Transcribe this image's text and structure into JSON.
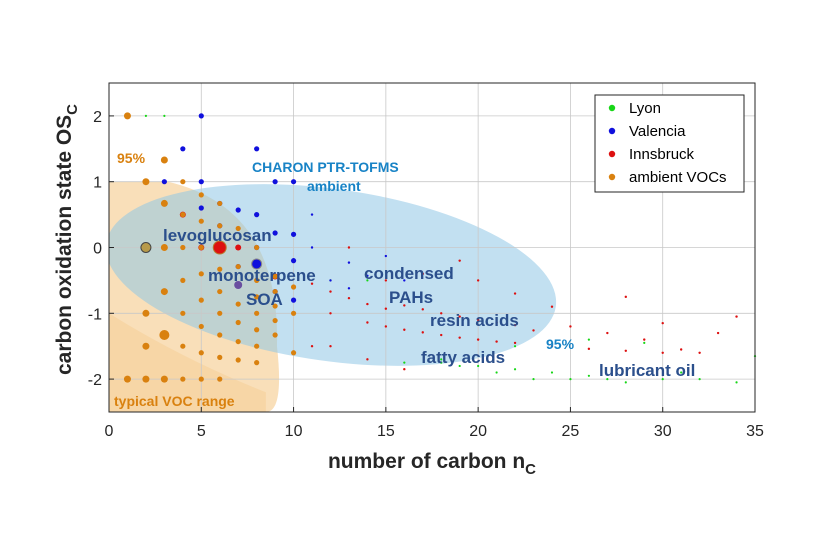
{
  "chart_data": {
    "type": "scatter",
    "title": "",
    "xlabel": {
      "main": "number of carbon n",
      "sub": "C"
    },
    "ylabel": {
      "main": "carbon oxidation state OS",
      "sub": "C"
    },
    "xlim": [
      0,
      35
    ],
    "ylim": [
      -2.5,
      2.5
    ],
    "x_ticks": [
      "0",
      "5",
      "10",
      "15",
      "20",
      "25",
      "30",
      "35"
    ],
    "y_ticks": [
      "-2",
      "-1",
      "0",
      "1",
      "2"
    ],
    "grid": true,
    "legend_position": "top-right",
    "series": [
      {
        "name": "Lyon",
        "color": "#17d617",
        "points": [
          [
            2,
            2
          ],
          [
            3,
            2
          ],
          [
            12,
            -0.5
          ],
          [
            14,
            -0.5
          ],
          [
            16,
            -1.75
          ],
          [
            18,
            -1.75
          ],
          [
            18,
            -1.7
          ],
          [
            19,
            -1.8
          ],
          [
            20,
            -1.8
          ],
          [
            21,
            -1.9
          ],
          [
            22,
            -1.85
          ],
          [
            23,
            -2.0
          ],
          [
            24,
            -1.9
          ],
          [
            25,
            -2.0
          ],
          [
            26,
            -1.95
          ],
          [
            27,
            -2.0
          ],
          [
            28,
            -2.05
          ],
          [
            29,
            -1.45
          ],
          [
            30,
            -2.0
          ],
          [
            32,
            -2.0
          ],
          [
            34,
            -2.05
          ],
          [
            35,
            -1.65
          ],
          [
            31,
            -1.9
          ],
          [
            26,
            -1.4
          ],
          [
            22,
            -1.5
          ]
        ]
      },
      {
        "name": "Valencia",
        "color": "#1010dd",
        "points": [
          [
            2,
            1
          ],
          [
            3,
            1
          ],
          [
            3,
            0.67
          ],
          [
            4,
            0.5
          ],
          [
            4,
            1.5
          ],
          [
            5,
            2
          ],
          [
            5,
            1
          ],
          [
            5,
            0.6
          ],
          [
            6,
            0.67
          ],
          [
            6,
            0.33
          ],
          [
            7,
            0.57
          ],
          [
            7,
            -0.29
          ],
          [
            8,
            -0.25
          ],
          [
            8,
            0
          ],
          [
            8,
            0.5
          ],
          [
            9,
            0.22
          ],
          [
            9,
            -0.67
          ],
          [
            10,
            0.2
          ],
          [
            10,
            -0.2
          ],
          [
            10,
            -0.8
          ],
          [
            11,
            0
          ],
          [
            12,
            -0.5
          ],
          [
            13,
            -0.23
          ],
          [
            13,
            -0.62
          ],
          [
            14,
            -0.43
          ],
          [
            15,
            -0.13
          ],
          [
            16,
            -0.5
          ],
          [
            8,
            1.5
          ],
          [
            9,
            1
          ],
          [
            10,
            1
          ],
          [
            11,
            0.5
          ]
        ]
      },
      {
        "name": "Innsbruck",
        "color": "#dd1010",
        "points": [
          [
            6,
            0
          ],
          [
            5,
            0
          ],
          [
            7,
            0
          ],
          [
            4,
            0.5
          ],
          [
            9,
            -0.44
          ],
          [
            10,
            -0.6
          ],
          [
            10,
            -1
          ],
          [
            11,
            -0.55
          ],
          [
            12,
            -0.67
          ],
          [
            12,
            -1
          ],
          [
            13,
            -0.77
          ],
          [
            14,
            -0.86
          ],
          [
            14,
            -1.14
          ],
          [
            15,
            -0.93
          ],
          [
            15,
            -1.2
          ],
          [
            16,
            -0.88
          ],
          [
            16,
            -1.25
          ],
          [
            17,
            -0.94
          ],
          [
            17,
            -1.29
          ],
          [
            18,
            -1
          ],
          [
            18,
            -1.33
          ],
          [
            19,
            -1.05
          ],
          [
            19,
            -1.37
          ],
          [
            20,
            -1.1
          ],
          [
            20,
            -1.4
          ],
          [
            21,
            -1.14
          ],
          [
            21,
            -1.43
          ],
          [
            22,
            -1.18
          ],
          [
            22,
            -1.45
          ],
          [
            23,
            -1.26
          ],
          [
            24,
            -1.5
          ],
          [
            25,
            -1.2
          ],
          [
            26,
            -1.54
          ],
          [
            27,
            -1.3
          ],
          [
            28,
            -1.57
          ],
          [
            29,
            -1.4
          ],
          [
            30,
            -1.6
          ],
          [
            31,
            -1.55
          ],
          [
            33,
            -1.3
          ],
          [
            34,
            -1.05
          ],
          [
            12,
            -1.5
          ],
          [
            14,
            -1.7
          ],
          [
            16,
            -1.85
          ],
          [
            20,
            -0.5
          ],
          [
            22,
            -0.7
          ],
          [
            24,
            -0.9
          ],
          [
            28,
            -0.75
          ],
          [
            30,
            -1.15
          ],
          [
            32,
            -1.6
          ],
          [
            15,
            -0.5
          ],
          [
            17,
            -0.4
          ],
          [
            19,
            -0.2
          ],
          [
            13,
            0
          ],
          [
            11,
            -1.5
          ]
        ]
      },
      {
        "name": "ambient VOCs",
        "color": "#d9810f",
        "points": [
          [
            1,
            2
          ],
          [
            1,
            -2
          ],
          [
            2,
            1
          ],
          [
            2,
            0
          ],
          [
            2,
            -1
          ],
          [
            2,
            -1.5
          ],
          [
            2,
            -2
          ],
          [
            3,
            1.33
          ],
          [
            3,
            0.67
          ],
          [
            3,
            0
          ],
          [
            3,
            -0.67
          ],
          [
            3,
            -1.33
          ],
          [
            3,
            -2
          ],
          [
            4,
            1
          ],
          [
            4,
            0.5
          ],
          [
            4,
            0
          ],
          [
            4,
            -0.5
          ],
          [
            4,
            -1
          ],
          [
            4,
            -1.5
          ],
          [
            4,
            -2
          ],
          [
            5,
            0.8
          ],
          [
            5,
            0.4
          ],
          [
            5,
            0
          ],
          [
            5,
            -0.4
          ],
          [
            5,
            -0.8
          ],
          [
            5,
            -1.2
          ],
          [
            5,
            -1.6
          ],
          [
            5,
            -2
          ],
          [
            6,
            0.67
          ],
          [
            6,
            0.33
          ],
          [
            6,
            0
          ],
          [
            6,
            -0.33
          ],
          [
            6,
            -0.67
          ],
          [
            6,
            -1
          ],
          [
            6,
            -1.33
          ],
          [
            6,
            -1.67
          ],
          [
            6,
            -2
          ],
          [
            7,
            0.29
          ],
          [
            7,
            -0.29
          ],
          [
            7,
            -0.57
          ],
          [
            7,
            -0.86
          ],
          [
            7,
            -1.14
          ],
          [
            7,
            -1.43
          ],
          [
            7,
            -1.71
          ],
          [
            8,
            0
          ],
          [
            8,
            -0.25
          ],
          [
            8,
            -0.5
          ],
          [
            8,
            -0.75
          ],
          [
            8,
            -1
          ],
          [
            8,
            -1.25
          ],
          [
            8,
            -1.5
          ],
          [
            8,
            -1.75
          ],
          [
            9,
            -0.44
          ],
          [
            9,
            -0.67
          ],
          [
            9,
            -0.89
          ],
          [
            9,
            -1.11
          ],
          [
            9,
            -1.33
          ],
          [
            10,
            -0.6
          ],
          [
            10,
            -1
          ],
          [
            10,
            -1.6
          ]
        ]
      }
    ]
  },
  "annotations": {
    "charon_line1": "CHARON PTR-TOFMS",
    "charon_line2": "ambient",
    "pct_voc": "95%",
    "pct_charon": "95%",
    "typical_voc": "typical VOC range",
    "levoglucosan": "levoglucosan",
    "monoterpene": "monoterpene",
    "soa": "SOA",
    "condensed": "condensed",
    "pahs": "PAHs",
    "resin_acids": "resin acids",
    "fatty_acids": "fatty acids",
    "lubricant_oil": "lubricant oil"
  },
  "colors": {
    "charon_ellipse": "#8fc6e6",
    "voc_region": "#f5c98a",
    "annotation_dark": "#2b4f8c",
    "annotation_blue": "#1883c6",
    "annotation_orange": "#d9810f"
  }
}
